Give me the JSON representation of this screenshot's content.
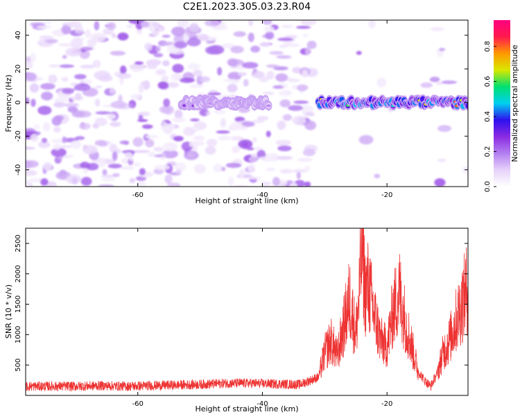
{
  "figure": {
    "title": "C2E1.2023.305.03.23.R04"
  },
  "colors": {
    "snr_line": "#ee3333",
    "axis": "#000000",
    "colormap": [
      "#ffffff",
      "#e6d2fa",
      "#b37ff0",
      "#8a2be2",
      "#2e10ee",
      "#00d0f0",
      "#00e070",
      "#d8e800",
      "#ff9900",
      "#ff1a4d",
      "#ff0080"
    ]
  },
  "chart_data": [
    {
      "type": "heatmap",
      "xlabel": "Height of straight line (km)",
      "ylabel": "Frequency (Hz)",
      "xlim": [
        -78,
        -7
      ],
      "ylim": [
        -50,
        49
      ],
      "xticks": [
        -60,
        -40,
        -20
      ],
      "yticks": [
        -40,
        -20,
        0,
        20,
        40
      ],
      "colorbar": {
        "label": "Normalized spectral amplitude",
        "range": [
          0.0,
          0.95
        ],
        "ticks": [
          0.0,
          0.2,
          0.4,
          0.6,
          0.8
        ]
      },
      "ridge": {
        "frequency_hz": 0,
        "segments": [
          {
            "x_from": -53,
            "x_to": -39,
            "peak_amplitude": 0.3
          },
          {
            "x_from": -31,
            "x_to": -7,
            "peak_amplitude": 0.9
          }
        ]
      }
    },
    {
      "type": "line",
      "xlabel": "Height of straight line (km)",
      "ylabel": "SNR (10 * v/v)",
      "xlim": [
        -78,
        -7
      ],
      "ylim": [
        0,
        2750
      ],
      "xticks": [
        -60,
        -40,
        -20
      ],
      "yticks": [
        500,
        1000,
        1500,
        2000,
        2500
      ],
      "series": [
        {
          "x": [
            -78,
            -74,
            -70,
            -66,
            -62,
            -58,
            -54,
            -50,
            -46,
            -42,
            -38,
            -34,
            -31,
            -30,
            -29,
            -28,
            -27,
            -26,
            -25,
            -24.5,
            -24,
            -23.5,
            -23,
            -22,
            -21,
            -20,
            -19,
            -18,
            -17,
            -16,
            -15,
            -14,
            -13,
            -12,
            -11,
            -10,
            -9,
            -8,
            -7
          ],
          "y": [
            150,
            150,
            150,
            160,
            150,
            160,
            170,
            180,
            200,
            200,
            190,
            180,
            300,
            700,
            900,
            650,
            1100,
            1600,
            1000,
            1600,
            2500,
            1700,
            1800,
            1300,
            900,
            800,
            1400,
            1700,
            1200,
            800,
            400,
            250,
            150,
            350,
            700,
            900,
            1200,
            1500,
            1800
          ]
        }
      ]
    }
  ]
}
